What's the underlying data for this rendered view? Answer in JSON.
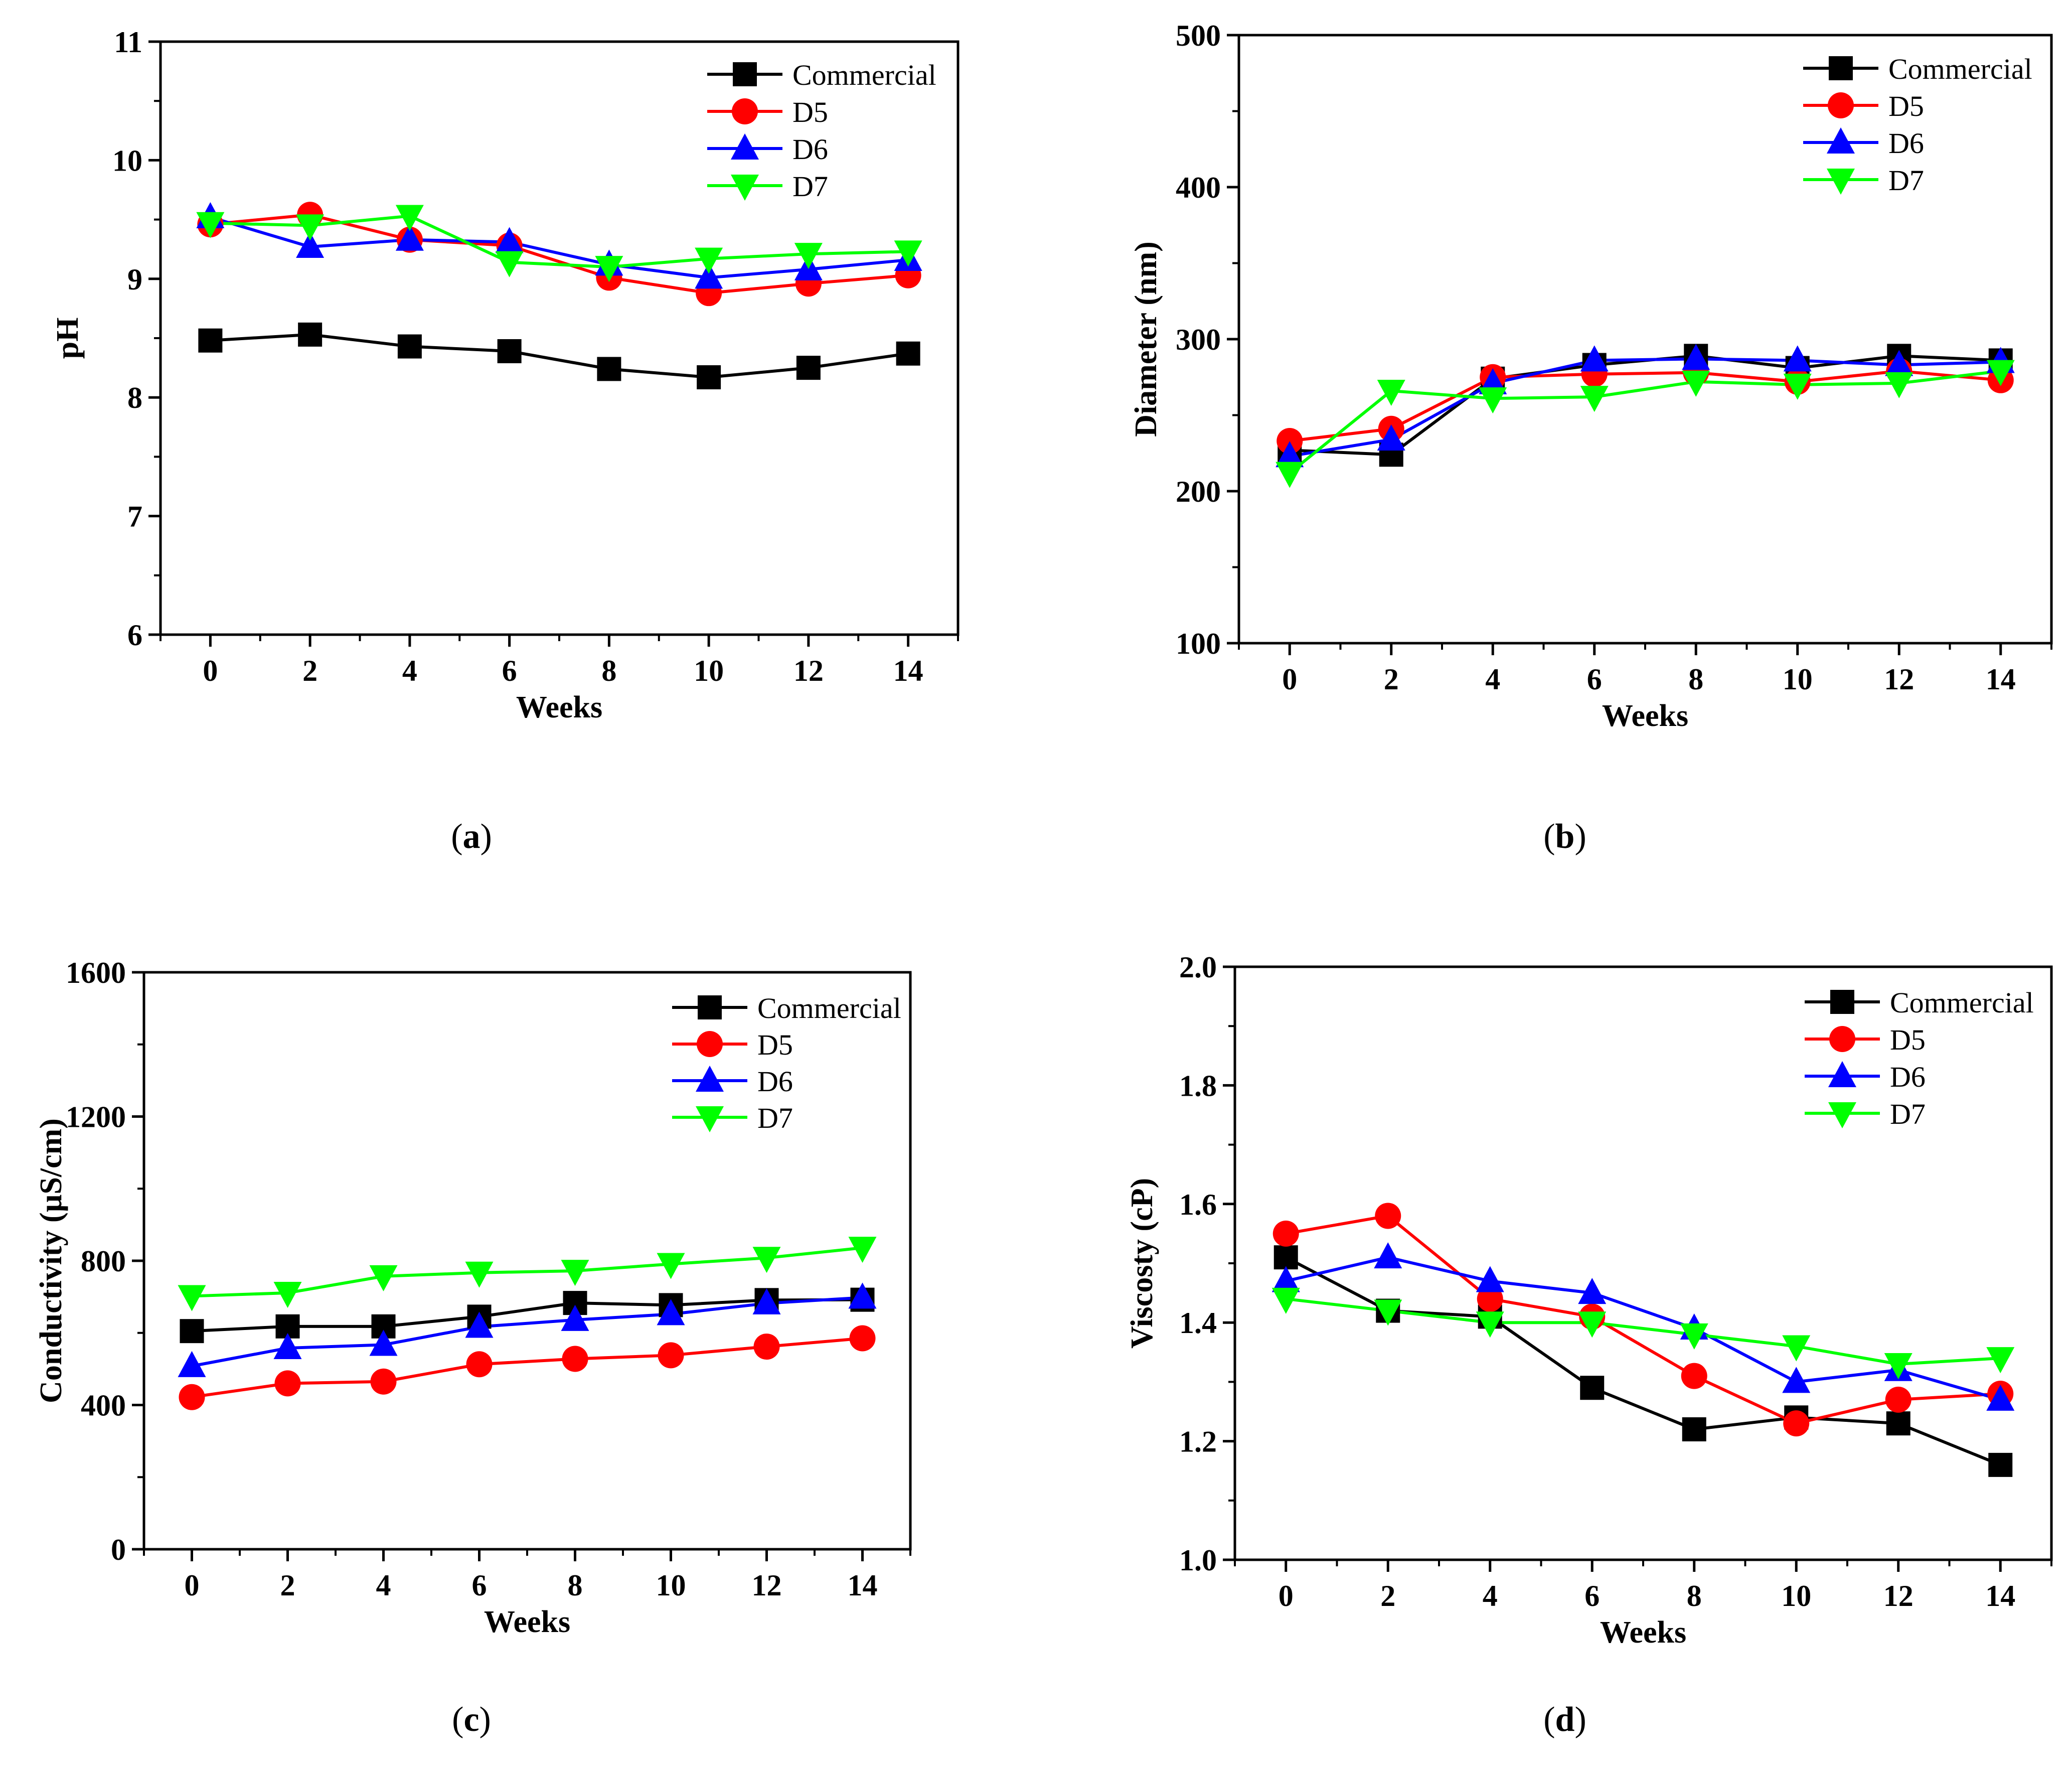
{
  "chart_data": [
    {
      "type": "line",
      "panel": "a",
      "caption": "(a)",
      "xlabel": "Weeks",
      "ylabel": "pH",
      "xlim": [
        -1,
        15
      ],
      "ylim": [
        6,
        11
      ],
      "xticks": [
        "0",
        "2",
        "4",
        "6",
        "8",
        "10",
        "12",
        "14"
      ],
      "yticks": [
        "6",
        "7",
        "8",
        "9",
        "10",
        "11"
      ],
      "x": [
        0,
        2,
        4,
        6,
        8,
        10,
        12,
        14
      ],
      "legend_position": "top-right",
      "series": [
        {
          "name": "Commercial",
          "color": "#000000",
          "marker": "square",
          "values": [
            8.48,
            8.53,
            8.43,
            8.39,
            8.24,
            8.17,
            8.25,
            8.37
          ]
        },
        {
          "name": "D5",
          "color": "#ff0000",
          "marker": "circle",
          "values": [
            9.46,
            9.54,
            9.33,
            9.28,
            9.01,
            8.88,
            8.96,
            9.03
          ]
        },
        {
          "name": "D6",
          "color": "#0000ff",
          "marker": "triangle-up",
          "values": [
            9.52,
            9.27,
            9.33,
            9.31,
            9.12,
            9.01,
            9.08,
            9.16
          ]
        },
        {
          "name": "D7",
          "color": "#00ff00",
          "marker": "triangle-down",
          "values": [
            9.47,
            9.45,
            9.53,
            9.14,
            9.1,
            9.17,
            9.21,
            9.23
          ]
        }
      ]
    },
    {
      "type": "line",
      "panel": "b",
      "caption": "(b)",
      "xlabel": "Weeks",
      "ylabel": "Diameter (nm)",
      "xlim": [
        -1,
        15
      ],
      "ylim": [
        100,
        500
      ],
      "xticks": [
        "0",
        "2",
        "4",
        "6",
        "8",
        "10",
        "12",
        "14"
      ],
      "yticks": [
        "100",
        "200",
        "300",
        "400",
        "500"
      ],
      "x": [
        0,
        2,
        4,
        6,
        8,
        10,
        12,
        14
      ],
      "legend_position": "top-right",
      "series": [
        {
          "name": "Commercial",
          "color": "#000000",
          "marker": "square",
          "values": [
            227,
            224,
            274,
            283,
            289,
            281,
            289,
            286
          ]
        },
        {
          "name": "D5",
          "color": "#ff0000",
          "marker": "circle",
          "values": [
            233,
            241,
            275,
            277,
            278,
            272,
            279,
            273
          ]
        },
        {
          "name": "D6",
          "color": "#0000ff",
          "marker": "triangle-up",
          "values": [
            223,
            234,
            271,
            286,
            287,
            286,
            283,
            285
          ]
        },
        {
          "name": "D7",
          "color": "#00ff00",
          "marker": "triangle-down",
          "values": [
            212,
            266,
            261,
            262,
            272,
            270,
            271,
            279
          ]
        }
      ]
    },
    {
      "type": "line",
      "panel": "c",
      "caption": "(c)",
      "xlabel": "Weeks",
      "ylabel": "Conductivity (µS/cm)",
      "xlim": [
        -1,
        15
      ],
      "ylim": [
        0,
        1600
      ],
      "xticks": [
        "0",
        "2",
        "4",
        "6",
        "8",
        "10",
        "12",
        "14"
      ],
      "yticks": [
        "0",
        "400",
        "800",
        "1200",
        "1600"
      ],
      "x": [
        0,
        2,
        4,
        6,
        8,
        10,
        12,
        14
      ],
      "legend_position": "top-right",
      "series": [
        {
          "name": "Commercial",
          "color": "#000000",
          "marker": "square",
          "values": [
            605,
            618,
            618,
            645,
            683,
            677,
            691,
            692
          ]
        },
        {
          "name": "D5",
          "color": "#ff0000",
          "marker": "circle",
          "values": [
            422,
            460,
            465,
            513,
            528,
            538,
            562,
            585
          ]
        },
        {
          "name": "D6",
          "color": "#0000ff",
          "marker": "triangle-up",
          "values": [
            508,
            558,
            567,
            617,
            636,
            652,
            682,
            698
          ]
        },
        {
          "name": "D7",
          "color": "#00ff00",
          "marker": "triangle-down",
          "values": [
            702,
            711,
            757,
            767,
            772,
            791,
            808,
            836
          ]
        }
      ]
    },
    {
      "type": "line",
      "panel": "d",
      "caption": "(d)",
      "xlabel": "Weeks",
      "ylabel": "Viscosty (cP)",
      "xlim": [
        -1,
        15
      ],
      "ylim": [
        1.0,
        2.0
      ],
      "xticks": [
        "0",
        "2",
        "4",
        "6",
        "8",
        "10",
        "12",
        "14"
      ],
      "yticks": [
        "1.0",
        "1.2",
        "1.4",
        "1.6",
        "1.8",
        "2.0"
      ],
      "x": [
        0,
        2,
        4,
        6,
        8,
        10,
        12,
        14
      ],
      "legend_position": "top-right",
      "series": [
        {
          "name": "Commercial",
          "color": "#000000",
          "marker": "square",
          "values": [
            1.51,
            1.42,
            1.41,
            1.29,
            1.22,
            1.24,
            1.23,
            1.16
          ]
        },
        {
          "name": "D5",
          "color": "#ff0000",
          "marker": "circle",
          "values": [
            1.55,
            1.58,
            1.44,
            1.41,
            1.31,
            1.23,
            1.27,
            1.28
          ]
        },
        {
          "name": "D6",
          "color": "#0000ff",
          "marker": "triangle-up",
          "values": [
            1.47,
            1.51,
            1.47,
            1.45,
            1.39,
            1.3,
            1.32,
            1.27
          ]
        },
        {
          "name": "D7",
          "color": "#00ff00",
          "marker": "triangle-down",
          "values": [
            1.44,
            1.42,
            1.4,
            1.4,
            1.38,
            1.36,
            1.33,
            1.34
          ]
        }
      ]
    }
  ]
}
